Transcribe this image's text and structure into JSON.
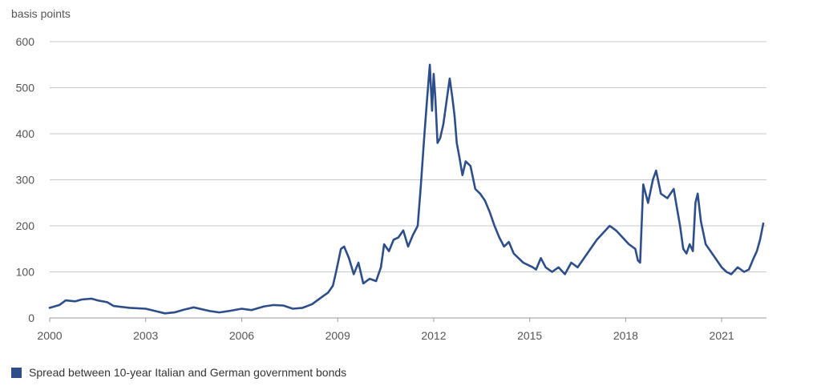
{
  "chart_data": {
    "type": "line",
    "ylabel": "basis points",
    "ylim": [
      0,
      600
    ],
    "yticks": [
      0,
      100,
      200,
      300,
      400,
      500,
      600
    ],
    "xlim": [
      2000,
      2022.4
    ],
    "xticks": [
      2000,
      2003,
      2006,
      2009,
      2012,
      2015,
      2018,
      2021
    ],
    "grid": "horizontal",
    "legend_position": "bottom-left",
    "series": [
      {
        "name": "Spread between 10-year Italian and German government bonds",
        "color": "#2d4e8a",
        "x": [
          2000.0,
          2000.3,
          2000.5,
          2000.8,
          2001.0,
          2001.3,
          2001.5,
          2001.8,
          2002.0,
          2002.5,
          2003.0,
          2003.3,
          2003.6,
          2003.9,
          2004.2,
          2004.5,
          2005.0,
          2005.3,
          2005.6,
          2006.0,
          2006.3,
          2006.7,
          2007.0,
          2007.3,
          2007.6,
          2007.9,
          2008.2,
          2008.5,
          2008.7,
          2008.85,
          2008.95,
          2009.1,
          2009.2,
          2009.35,
          2009.5,
          2009.65,
          2009.8,
          2010.0,
          2010.2,
          2010.35,
          2010.45,
          2010.6,
          2010.75,
          2010.9,
          2011.05,
          2011.2,
          2011.35,
          2011.5,
          2011.6,
          2011.7,
          2011.8,
          2011.88,
          2011.95,
          2012.0,
          2012.05,
          2012.12,
          2012.2,
          2012.3,
          2012.4,
          2012.5,
          2012.58,
          2012.65,
          2012.72,
          2012.8,
          2012.9,
          2013.0,
          2013.15,
          2013.3,
          2013.45,
          2013.6,
          2013.75,
          2013.9,
          2014.05,
          2014.2,
          2014.35,
          2014.5,
          2014.65,
          2014.8,
          2014.95,
          2015.1,
          2015.2,
          2015.35,
          2015.5,
          2015.7,
          2015.9,
          2016.1,
          2016.3,
          2016.5,
          2016.7,
          2016.9,
          2017.1,
          2017.3,
          2017.5,
          2017.7,
          2017.9,
          2018.1,
          2018.3,
          2018.38,
          2018.45,
          2018.55,
          2018.7,
          2018.85,
          2018.95,
          2019.1,
          2019.3,
          2019.5,
          2019.6,
          2019.7,
          2019.8,
          2019.9,
          2020.0,
          2020.1,
          2020.18,
          2020.25,
          2020.35,
          2020.5,
          2020.7,
          2020.9,
          2021.0,
          2021.15,
          2021.3,
          2021.5,
          2021.7,
          2021.85,
          2022.0,
          2022.1,
          2022.2,
          2022.3
        ],
        "y": [
          22,
          28,
          38,
          36,
          40,
          42,
          38,
          34,
          26,
          22,
          20,
          15,
          10,
          12,
          18,
          23,
          15,
          12,
          15,
          20,
          17,
          25,
          28,
          27,
          20,
          22,
          30,
          45,
          55,
          70,
          100,
          150,
          155,
          130,
          95,
          120,
          75,
          85,
          80,
          110,
          160,
          145,
          170,
          175,
          190,
          155,
          180,
          200,
          290,
          390,
          480,
          550,
          450,
          530,
          480,
          380,
          390,
          420,
          470,
          520,
          480,
          440,
          380,
          350,
          310,
          340,
          330,
          280,
          270,
          255,
          230,
          200,
          175,
          155,
          165,
          140,
          130,
          120,
          115,
          110,
          105,
          130,
          110,
          100,
          110,
          95,
          120,
          110,
          130,
          150,
          170,
          185,
          200,
          190,
          175,
          160,
          150,
          125,
          120,
          290,
          250,
          300,
          320,
          270,
          260,
          280,
          240,
          200,
          150,
          140,
          160,
          145,
          250,
          270,
          210,
          160,
          140,
          120,
          110,
          100,
          95,
          110,
          100,
          105,
          130,
          145,
          170,
          205
        ]
      }
    ]
  }
}
